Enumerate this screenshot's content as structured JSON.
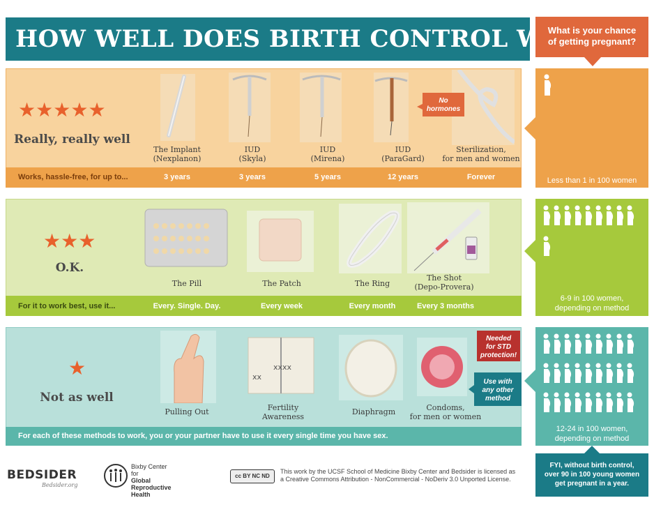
{
  "title": "HOW WELL DOES BIRTH CONTROL WORK?",
  "question": {
    "line1": "What is your chance",
    "line2": "of getting pregnant?"
  },
  "colors": {
    "teal": "#1b7b87",
    "orange": "#e0683c",
    "tier1": "#eea24a",
    "tier2": "#a6c93c",
    "tier3": "#5bb6aa",
    "star": "#e8612c"
  },
  "tiers": [
    {
      "stars": 5,
      "label": "Really, really well",
      "bar_text": "Works, hassle-free, for up to...",
      "methods": [
        {
          "name1": "The Implant",
          "name2": "(Nexplanon)",
          "duration": "3 years",
          "icon": "implant-rod-icon"
        },
        {
          "name1": "IUD",
          "name2": "(Skyla)",
          "duration": "3 years",
          "icon": "iud-icon"
        },
        {
          "name1": "IUD",
          "name2": "(Mirena)",
          "duration": "5 years",
          "icon": "iud-icon"
        },
        {
          "name1": "IUD",
          "name2": "(ParaGard)",
          "duration": "12 years",
          "icon": "copper-iud-icon"
        },
        {
          "name1": "Sterilization,",
          "name2": "for men and women",
          "duration": "Forever",
          "icon": "knotted-tube-icon"
        }
      ],
      "callout": {
        "line1": "No",
        "line2": "hormones"
      },
      "outcome": "Less than 1 in 100 women"
    },
    {
      "stars": 3,
      "label": "O.K.",
      "bar_text": "For it to work best, use it...",
      "methods": [
        {
          "name1": "The Pill",
          "name2": "",
          "duration": "Every. Single. Day.",
          "icon": "pill-pack-icon"
        },
        {
          "name1": "The Patch",
          "name2": "",
          "duration": "Every week",
          "icon": "patch-icon"
        },
        {
          "name1": "The Ring",
          "name2": "",
          "duration": "Every month",
          "icon": "ring-icon"
        },
        {
          "name1": "The Shot",
          "name2": "(Depo-Provera)",
          "duration": "Every 3 months",
          "icon": "syringe-icon"
        }
      ],
      "outcome": {
        "line1": "6-9 in 100 women,",
        "line2": "depending on method"
      }
    },
    {
      "stars": 1,
      "label": "Not as well",
      "bar_text": "For each of these methods to work, you or your partner have to use it every single time you have sex.",
      "methods": [
        {
          "name1": "Pulling Out",
          "name2": "",
          "icon": "crossed-fingers-icon"
        },
        {
          "name1": "Fertility",
          "name2": "Awareness",
          "icon": "calendar-icon"
        },
        {
          "name1": "Diaphragm",
          "name2": "",
          "icon": "diaphragm-icon"
        },
        {
          "name1": "Condoms,",
          "name2": "for men or women",
          "icon": "condom-icon"
        }
      ],
      "callout_std": {
        "line1": "Needed",
        "line2": "for STD",
        "line3": "protection!"
      },
      "callout_other": {
        "line1": "Use with",
        "line2": "any other",
        "line3": "method"
      },
      "outcome": {
        "line1": "12-24 in 100 women,",
        "line2": "depending on method"
      }
    }
  ],
  "fyi": {
    "line1": "FYI, without birth control,",
    "line2": "over 90 in 100 young women",
    "line3": "get pregnant in a year."
  },
  "footer": {
    "bedsider": "BEDSIDER",
    "bedsider_url": "Bedsider.org",
    "bixby_line1": "Bixby Center",
    "bixby_line2": "for",
    "bixby_line3": "Global",
    "bixby_line4": "Reproductive",
    "bixby_line5": "Health",
    "cc_badge": "cc BY NC ND",
    "license_line1": "This work by the UCSF School of Medicine Bixby Center and Bedsider is licensed as",
    "license_line2": "a Creative Commons Attribution - NonCommercial - NoDeriv 3.0 Unported License."
  }
}
